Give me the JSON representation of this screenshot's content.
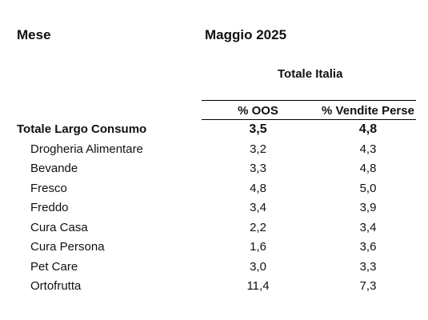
{
  "header": {
    "period_label": "Mese",
    "period_value": "Maggio 2025",
    "region": "Totale Italia"
  },
  "columns": {
    "oos": "% OOS",
    "lost_sales": "% Vendite Perse"
  },
  "rows": [
    {
      "category": "Totale Largo Consumo",
      "oos": "3,5",
      "lost_sales": "4,8"
    },
    {
      "category": "Drogheria Alimentare",
      "oos": "3,2",
      "lost_sales": "4,3"
    },
    {
      "category": "Bevande",
      "oos": "3,3",
      "lost_sales": "4,8"
    },
    {
      "category": "Fresco",
      "oos": "4,8",
      "lost_sales": "5,0"
    },
    {
      "category": "Freddo",
      "oos": "3,4",
      "lost_sales": "3,9"
    },
    {
      "category": "Cura Casa",
      "oos": "2,2",
      "lost_sales": "3,4"
    },
    {
      "category": "Cura Persona",
      "oos": "1,6",
      "lost_sales": "3,6"
    },
    {
      "category": "Pet Care",
      "oos": "3,0",
      "lost_sales": "3,3"
    },
    {
      "category": "Ortofrutta",
      "oos": "11,4",
      "lost_sales": "7,3"
    }
  ]
}
